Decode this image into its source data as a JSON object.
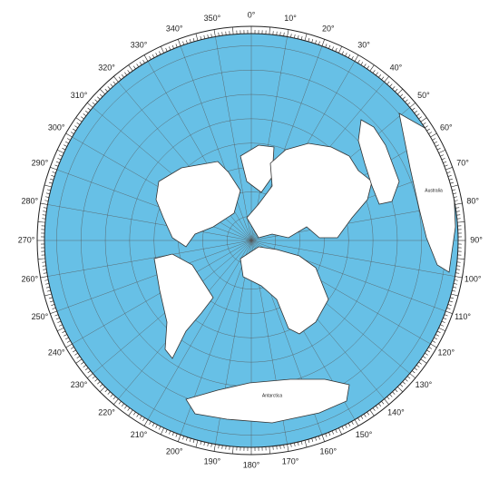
{
  "ring_labels": [
    "0°",
    "10°",
    "20°",
    "30°",
    "40°",
    "50°",
    "60°",
    "70°",
    "80°",
    "90°",
    "100°",
    "110°",
    "120°",
    "130°",
    "140°",
    "150°",
    "160°",
    "170°",
    "180°",
    "190°",
    "200°",
    "210°",
    "220°",
    "230°",
    "240°",
    "250°",
    "260°",
    "270°",
    "280°",
    "290°",
    "300°",
    "310°",
    "320°",
    "330°",
    "340°",
    "350°"
  ],
  "place_labels": {
    "australia": "Australia",
    "antarctica": "Antarctica"
  }
}
